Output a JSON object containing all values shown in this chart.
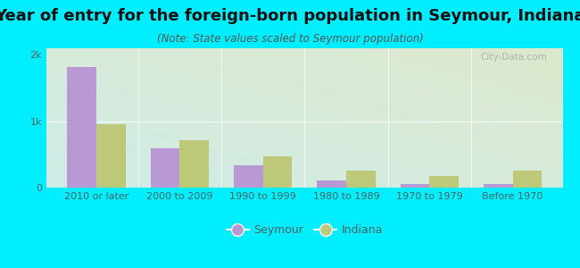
{
  "title": "Year of entry for the foreign-born population in Seymour, Indiana",
  "subtitle": "(Note: State values scaled to Seymour population)",
  "categories": [
    "2010 or later",
    "2000 to 2009",
    "1990 to 1999",
    "1980 to 1989",
    "1970 to 1979",
    "Before 1970"
  ],
  "seymour_values": [
    1820,
    590,
    330,
    110,
    55,
    48
  ],
  "indiana_values": [
    960,
    720,
    470,
    250,
    175,
    260
  ],
  "seymour_color": "#b899d4",
  "indiana_color": "#bdc878",
  "background_outer": "#00eeff",
  "bg_top_left": "#d0ede8",
  "bg_bottom_right": "#dde8cc",
  "ylim": [
    0,
    2100
  ],
  "ytick_labels": [
    "0",
    "1k",
    "2k"
  ],
  "ytick_vals": [
    0,
    1000,
    2000
  ],
  "legend_seymour": "Seymour",
  "legend_indiana": "Indiana",
  "watermark": "City-Data.com",
  "bar_width": 0.35,
  "title_fontsize": 13,
  "subtitle_fontsize": 8.5,
  "tick_fontsize": 8,
  "legend_fontsize": 9
}
